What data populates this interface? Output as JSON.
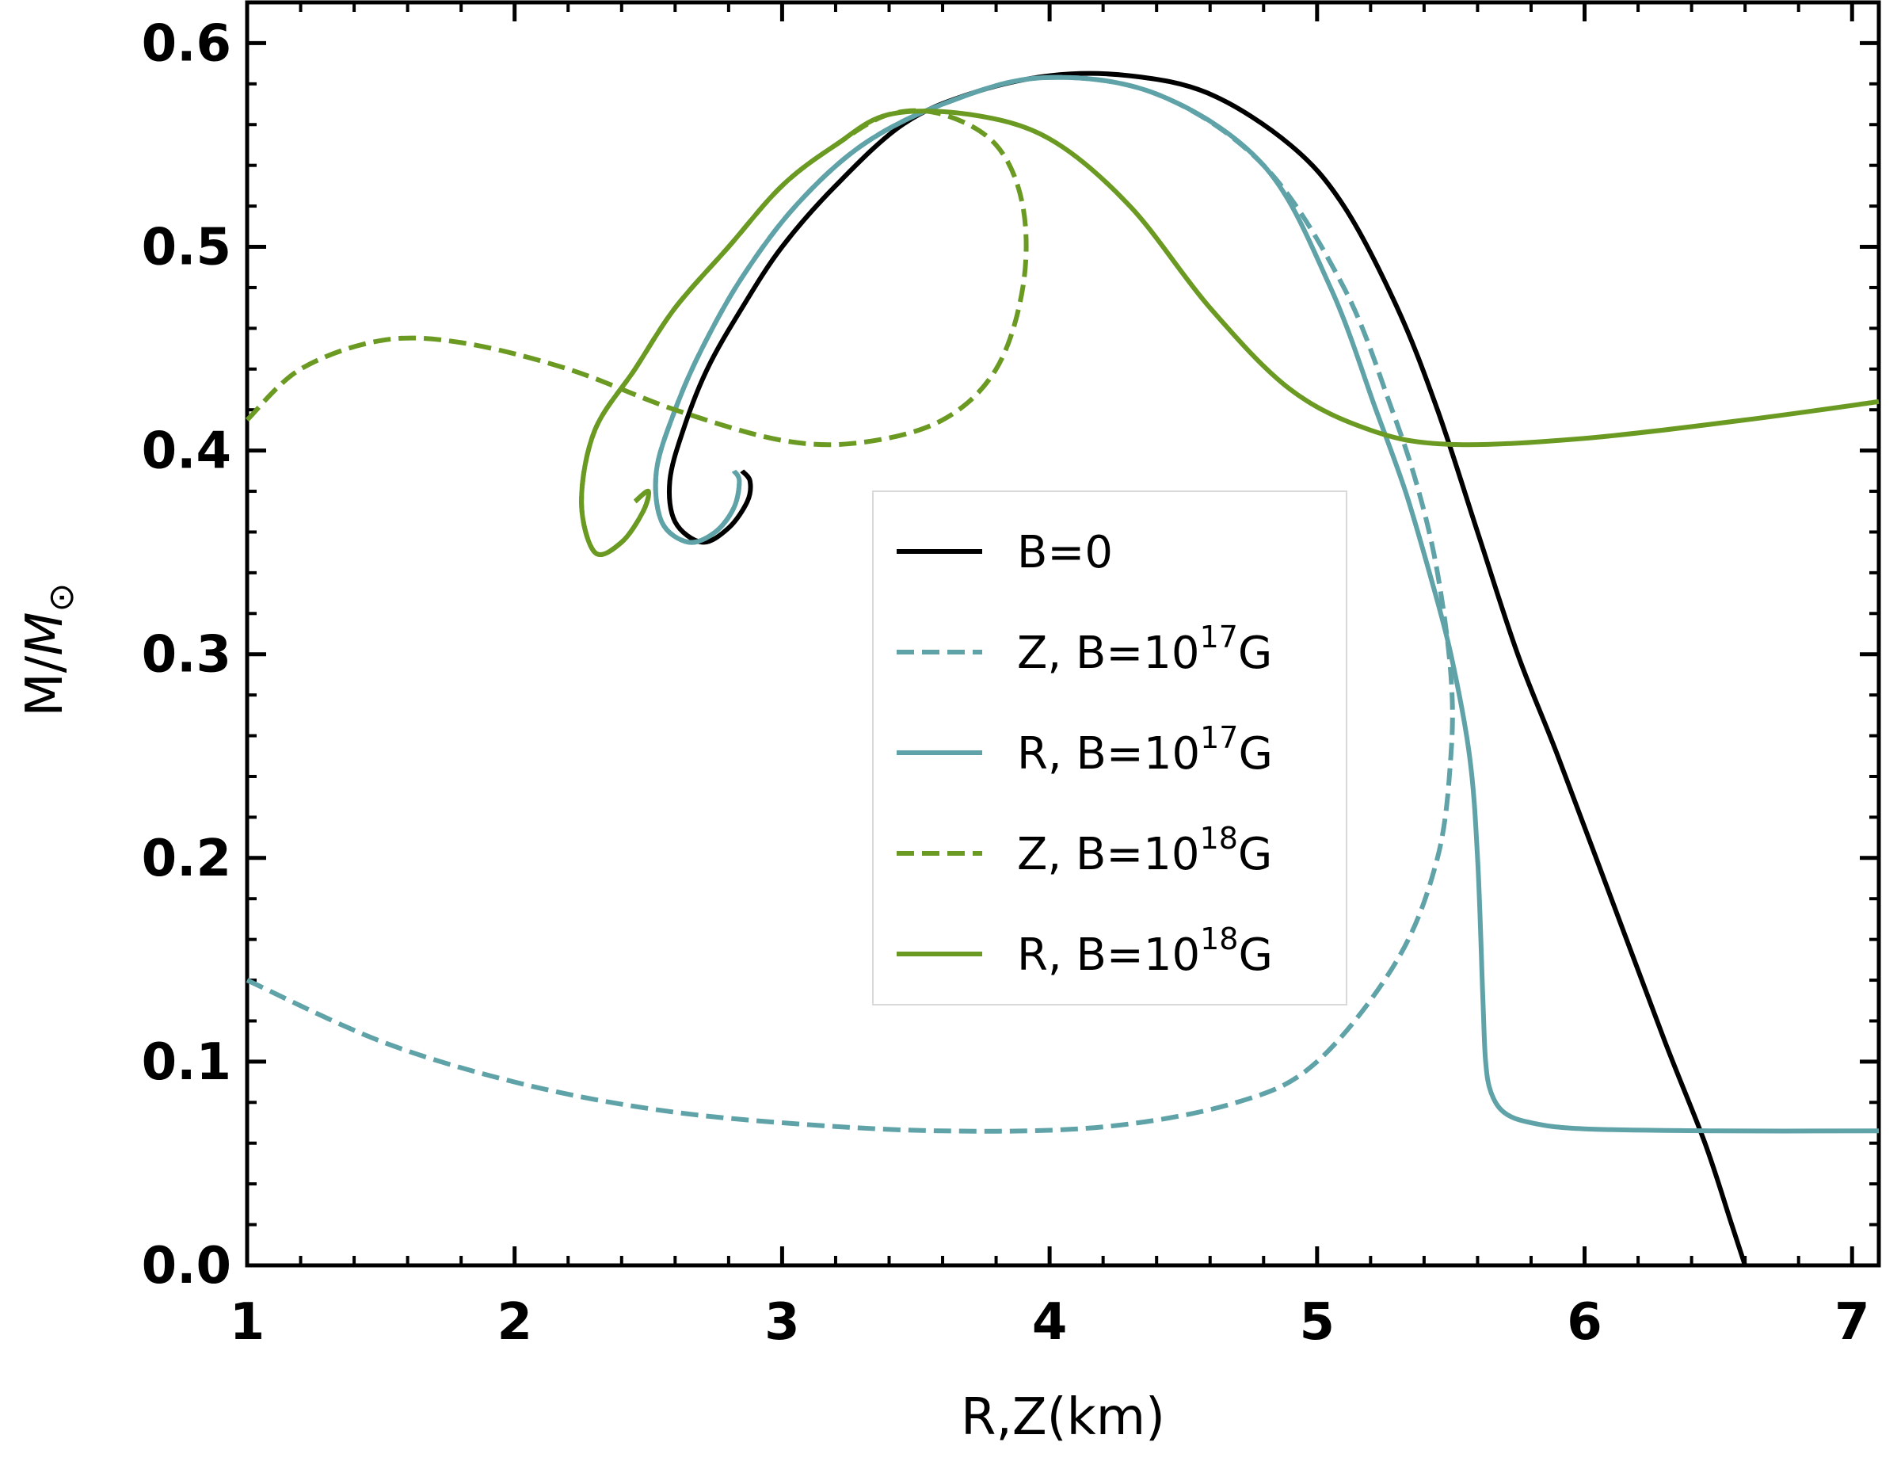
{
  "chart_data": {
    "type": "line",
    "xlabel": "R,Z(km)",
    "ylabel": {
      "base": "M/",
      "symbol": "M",
      "subscript": "⊙"
    },
    "xlim": [
      1,
      7.1
    ],
    "ylim": [
      0,
      0.62
    ],
    "xticks": [
      1,
      2,
      3,
      4,
      5,
      6,
      7
    ],
    "yticks": [
      0.0,
      0.1,
      0.2,
      0.3,
      0.4,
      0.5,
      0.6
    ],
    "xtick_labels": [
      "1",
      "2",
      "3",
      "4",
      "5",
      "6",
      "7"
    ],
    "ytick_labels": [
      "0.0",
      "0.1",
      "0.2",
      "0.3",
      "0.4",
      "0.5",
      "0.6"
    ],
    "legend_position": "center-right",
    "grid": false,
    "series": [
      {
        "name": "B=0",
        "legend": {
          "prefix": "B=0",
          "exp": "",
          "suffix": ""
        },
        "color": "#000000",
        "dash": "solid",
        "points": [
          [
            6.6,
            0.0
          ],
          [
            6.55,
            0.02
          ],
          [
            6.45,
            0.06
          ],
          [
            6.3,
            0.11
          ],
          [
            6.1,
            0.18
          ],
          [
            5.9,
            0.25
          ],
          [
            5.75,
            0.3
          ],
          [
            5.6,
            0.36
          ],
          [
            5.45,
            0.42
          ],
          [
            5.3,
            0.47
          ],
          [
            5.1,
            0.52
          ],
          [
            4.9,
            0.55
          ],
          [
            4.6,
            0.575
          ],
          [
            4.3,
            0.584
          ],
          [
            4.0,
            0.584
          ],
          [
            3.7,
            0.575
          ],
          [
            3.45,
            0.56
          ],
          [
            3.2,
            0.53
          ],
          [
            3.0,
            0.5
          ],
          [
            2.85,
            0.47
          ],
          [
            2.72,
            0.44
          ],
          [
            2.63,
            0.41
          ],
          [
            2.58,
            0.385
          ],
          [
            2.6,
            0.365
          ],
          [
            2.7,
            0.355
          ],
          [
            2.8,
            0.362
          ],
          [
            2.87,
            0.375
          ],
          [
            2.88,
            0.385
          ],
          [
            2.85,
            0.39
          ]
        ]
      },
      {
        "name": "Z, B=10^17G",
        "legend": {
          "prefix": "Z, B=10",
          "exp": "17",
          "suffix": "G"
        },
        "color": "#5fa3a8",
        "dash": "dashed",
        "points": [
          [
            1.0,
            0.14
          ],
          [
            1.5,
            0.11
          ],
          [
            2.0,
            0.09
          ],
          [
            2.5,
            0.077
          ],
          [
            3.0,
            0.07
          ],
          [
            3.6,
            0.066
          ],
          [
            4.2,
            0.068
          ],
          [
            4.7,
            0.08
          ],
          [
            5.0,
            0.1
          ],
          [
            5.3,
            0.15
          ],
          [
            5.45,
            0.2
          ],
          [
            5.5,
            0.25
          ],
          [
            5.5,
            0.29
          ],
          [
            5.45,
            0.34
          ],
          [
            5.38,
            0.38
          ],
          [
            5.28,
            0.42
          ],
          [
            5.1,
            0.48
          ],
          [
            4.8,
            0.54
          ],
          [
            4.4,
            0.575
          ],
          [
            3.97,
            0.583
          ],
          [
            3.6,
            0.57
          ],
          [
            3.3,
            0.55
          ],
          [
            3.05,
            0.52
          ],
          [
            2.85,
            0.485
          ],
          [
            2.7,
            0.45
          ],
          [
            2.6,
            0.42
          ],
          [
            2.53,
            0.39
          ],
          [
            2.55,
            0.365
          ],
          [
            2.65,
            0.355
          ],
          [
            2.75,
            0.36
          ],
          [
            2.82,
            0.372
          ],
          [
            2.84,
            0.385
          ],
          [
            2.82,
            0.39
          ]
        ]
      },
      {
        "name": "R, B=10^17G",
        "legend": {
          "prefix": "R, B=10",
          "exp": "17",
          "suffix": "G"
        },
        "color": "#5fa3a8",
        "dash": "solid",
        "points": [
          [
            7.1,
            0.066
          ],
          [
            6.5,
            0.066
          ],
          [
            6.0,
            0.067
          ],
          [
            5.8,
            0.07
          ],
          [
            5.7,
            0.075
          ],
          [
            5.65,
            0.085
          ],
          [
            5.63,
            0.1
          ],
          [
            5.62,
            0.13
          ],
          [
            5.6,
            0.2
          ],
          [
            5.57,
            0.25
          ],
          [
            5.5,
            0.3
          ],
          [
            5.42,
            0.34
          ],
          [
            5.33,
            0.38
          ],
          [
            5.22,
            0.42
          ],
          [
            5.05,
            0.48
          ],
          [
            4.8,
            0.54
          ],
          [
            4.4,
            0.575
          ],
          [
            3.97,
            0.583
          ],
          [
            3.6,
            0.57
          ],
          [
            3.3,
            0.55
          ],
          [
            3.05,
            0.52
          ],
          [
            2.85,
            0.485
          ],
          [
            2.7,
            0.45
          ],
          [
            2.6,
            0.42
          ],
          [
            2.53,
            0.39
          ],
          [
            2.55,
            0.365
          ],
          [
            2.65,
            0.355
          ],
          [
            2.75,
            0.36
          ],
          [
            2.82,
            0.372
          ],
          [
            2.84,
            0.385
          ],
          [
            2.82,
            0.39
          ]
        ]
      },
      {
        "name": "Z, B=10^18G",
        "legend": {
          "prefix": "Z, B=10",
          "exp": "18",
          "suffix": "G"
        },
        "color": "#6b9a22",
        "dash": "dashed",
        "points": [
          [
            1.0,
            0.415
          ],
          [
            1.2,
            0.44
          ],
          [
            1.5,
            0.454
          ],
          [
            1.8,
            0.453
          ],
          [
            2.2,
            0.44
          ],
          [
            2.6,
            0.42
          ],
          [
            3.0,
            0.405
          ],
          [
            3.3,
            0.404
          ],
          [
            3.6,
            0.415
          ],
          [
            3.8,
            0.44
          ],
          [
            3.9,
            0.48
          ],
          [
            3.9,
            0.52
          ],
          [
            3.8,
            0.55
          ],
          [
            3.6,
            0.565
          ],
          [
            3.4,
            0.565
          ],
          [
            3.2,
            0.55
          ],
          [
            3.0,
            0.53
          ],
          [
            2.8,
            0.5
          ],
          [
            2.6,
            0.47
          ],
          [
            2.45,
            0.44
          ],
          [
            2.3,
            0.41
          ],
          [
            2.25,
            0.375
          ],
          [
            2.3,
            0.35
          ],
          [
            2.4,
            0.355
          ],
          [
            2.48,
            0.37
          ],
          [
            2.5,
            0.38
          ],
          [
            2.45,
            0.375
          ]
        ]
      },
      {
        "name": "R, B=10^18G",
        "legend": {
          "prefix": "R, B=10",
          "exp": "18",
          "suffix": "G"
        },
        "color": "#6b9a22",
        "dash": "solid",
        "points": [
          [
            7.1,
            0.424
          ],
          [
            6.6,
            0.415
          ],
          [
            6.0,
            0.406
          ],
          [
            5.5,
            0.403
          ],
          [
            5.2,
            0.41
          ],
          [
            4.9,
            0.43
          ],
          [
            4.6,
            0.47
          ],
          [
            4.3,
            0.52
          ],
          [
            4.0,
            0.553
          ],
          [
            3.7,
            0.565
          ],
          [
            3.4,
            0.565
          ],
          [
            3.2,
            0.55
          ],
          [
            3.0,
            0.53
          ],
          [
            2.8,
            0.5
          ],
          [
            2.6,
            0.47
          ],
          [
            2.45,
            0.44
          ],
          [
            2.3,
            0.41
          ],
          [
            2.25,
            0.375
          ],
          [
            2.3,
            0.35
          ],
          [
            2.4,
            0.355
          ],
          [
            2.48,
            0.37
          ],
          [
            2.5,
            0.38
          ],
          [
            2.45,
            0.375
          ]
        ]
      }
    ]
  }
}
